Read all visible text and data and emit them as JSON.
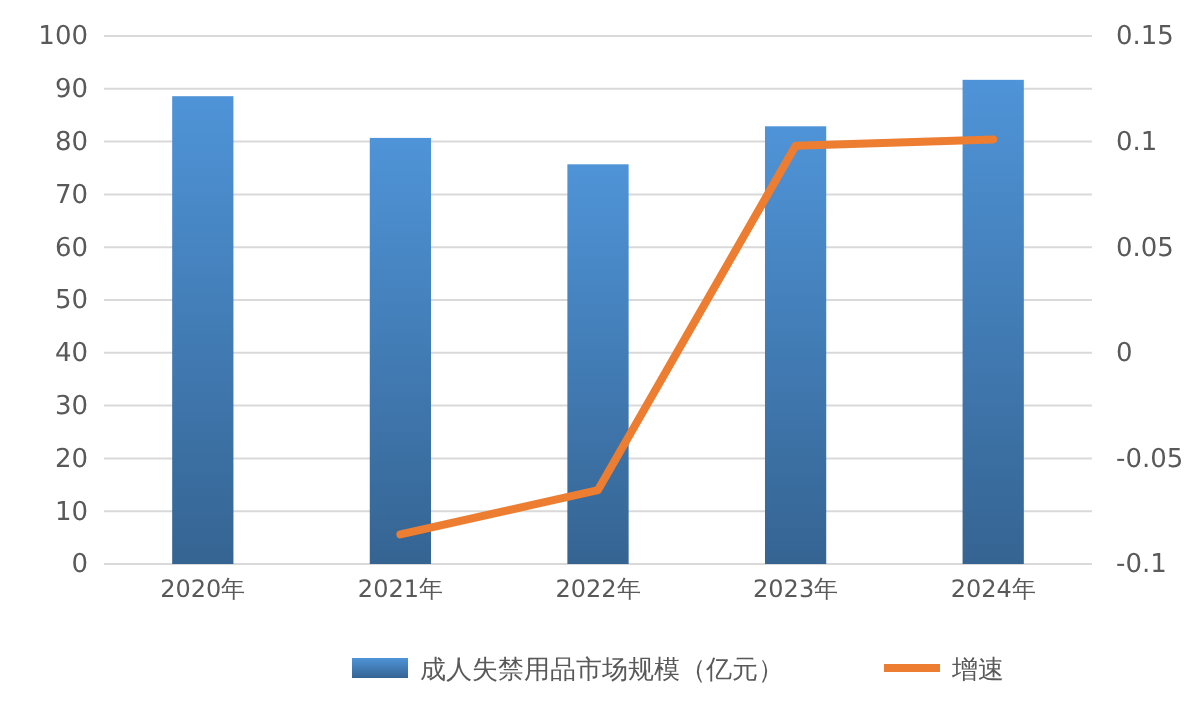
{
  "chart_data": {
    "type": "bar",
    "categories": [
      "2020年",
      "2021年",
      "2022年",
      "2023年",
      "2024年"
    ],
    "series": [
      {
        "name": "成人失禁用品市场规模（亿元）",
        "color": "#4f94d8",
        "values": [
          88.6,
          80.7,
          75.7,
          82.9,
          91.7
        ]
      },
      {
        "name": "增速",
        "type": "line",
        "axis": "y2",
        "color": "#ed7d31",
        "values": [
          null,
          -0.086,
          -0.065,
          0.098,
          0.101
        ]
      }
    ],
    "ylim": [
      0,
      100
    ],
    "yticks": [
      0,
      10,
      20,
      30,
      40,
      50,
      60,
      70,
      80,
      90,
      100
    ],
    "y2lim": [
      -0.1,
      0.15
    ],
    "y2ticks": [
      -0.1,
      -0.05,
      0,
      0.05,
      0.1,
      0.15
    ],
    "grid": "y",
    "legend": "bottom"
  }
}
